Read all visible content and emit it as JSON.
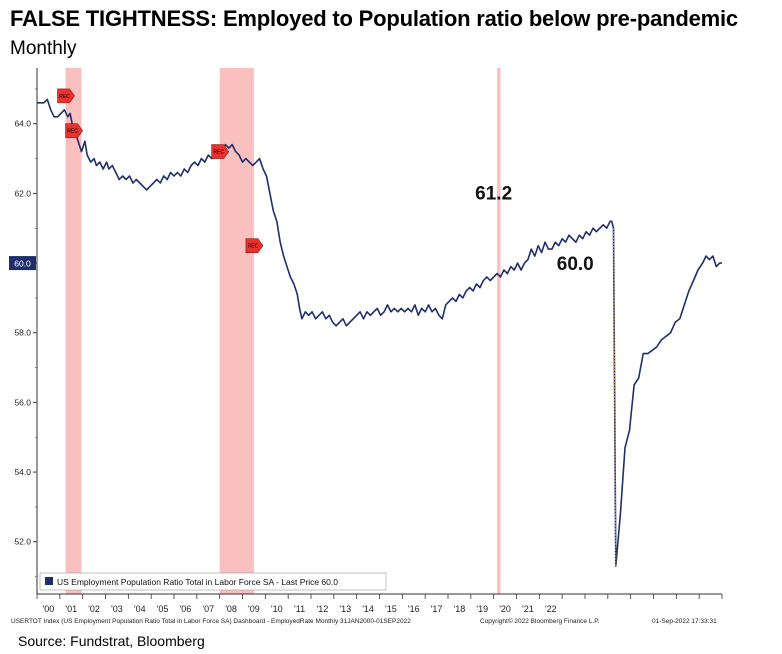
{
  "title": "FALSE TIGHTNESS: Employed to Population ratio below pre-pandemic",
  "subtitle": "Monthly",
  "source": "Source: Fundstrat, Bloomberg",
  "footer": {
    "left": "USERTOT Index (US Employment Population Ratio Total in Labor Force SA) Dashboard - EmployedRate  Monthly 31JAN2000-01SEP2022",
    "copyright": "Copyright© 2022 Bloomberg Finance L.P.",
    "timestamp": "01-Sep-2022 17:33:31"
  },
  "chart_data": {
    "type": "line",
    "series": [
      {
        "name": "US Employment Population Ratio Total in Labor Force SA",
        "color": "#1f2f6b",
        "points": [
          [
            2000.0,
            64.6
          ],
          [
            2000.3,
            64.6
          ],
          [
            2000.45,
            64.7
          ],
          [
            2000.6,
            64.4
          ],
          [
            2000.75,
            64.2
          ],
          [
            2000.9,
            64.2
          ],
          [
            2001.05,
            64.3
          ],
          [
            2001.2,
            64.4
          ],
          [
            2001.35,
            64.2
          ],
          [
            2001.45,
            64.3
          ],
          [
            2001.6,
            63.8
          ],
          [
            2001.75,
            63.6
          ],
          [
            2001.85,
            63.4
          ],
          [
            2001.95,
            63.2
          ],
          [
            2002.1,
            63.5
          ],
          [
            2002.2,
            63.1
          ],
          [
            2002.35,
            62.9
          ],
          [
            2002.5,
            63.0
          ],
          [
            2002.6,
            62.8
          ],
          [
            2002.75,
            62.9
          ],
          [
            2002.9,
            62.7
          ],
          [
            2003.05,
            62.9
          ],
          [
            2003.15,
            62.7
          ],
          [
            2003.3,
            62.8
          ],
          [
            2003.45,
            62.6
          ],
          [
            2003.6,
            62.4
          ],
          [
            2003.75,
            62.5
          ],
          [
            2003.9,
            62.4
          ],
          [
            2004.05,
            62.5
          ],
          [
            2004.2,
            62.3
          ],
          [
            2004.35,
            62.4
          ],
          [
            2004.5,
            62.3
          ],
          [
            2004.65,
            62.2
          ],
          [
            2004.8,
            62.1
          ],
          [
            2004.95,
            62.2
          ],
          [
            2005.1,
            62.3
          ],
          [
            2005.25,
            62.4
          ],
          [
            2005.4,
            62.3
          ],
          [
            2005.55,
            62.5
          ],
          [
            2005.7,
            62.4
          ],
          [
            2005.85,
            62.6
          ],
          [
            2006.0,
            62.5
          ],
          [
            2006.15,
            62.6
          ],
          [
            2006.3,
            62.5
          ],
          [
            2006.45,
            62.7
          ],
          [
            2006.6,
            62.6
          ],
          [
            2006.75,
            62.8
          ],
          [
            2006.9,
            62.9
          ],
          [
            2007.05,
            62.8
          ],
          [
            2007.2,
            63.0
          ],
          [
            2007.35,
            62.9
          ],
          [
            2007.5,
            63.1
          ],
          [
            2007.65,
            63.0
          ],
          [
            2007.8,
            63.2
          ],
          [
            2007.95,
            63.1
          ],
          [
            2008.1,
            63.2
          ],
          [
            2008.25,
            63.4
          ],
          [
            2008.4,
            63.3
          ],
          [
            2008.55,
            63.4
          ],
          [
            2008.7,
            63.2
          ],
          [
            2008.85,
            63.1
          ],
          [
            2009.0,
            62.9
          ],
          [
            2009.15,
            63.0
          ],
          [
            2009.3,
            62.9
          ],
          [
            2009.45,
            62.8
          ],
          [
            2009.6,
            62.9
          ],
          [
            2009.75,
            63.0
          ],
          [
            2009.9,
            62.7
          ],
          [
            2010.05,
            62.5
          ],
          [
            2010.2,
            62.0
          ],
          [
            2010.35,
            61.5
          ],
          [
            2010.5,
            61.2
          ],
          [
            2010.65,
            60.6
          ],
          [
            2010.8,
            60.2
          ],
          [
            2010.95,
            59.9
          ],
          [
            2011.1,
            59.6
          ],
          [
            2011.25,
            59.4
          ],
          [
            2011.4,
            59.1
          ],
          [
            2011.5,
            58.7
          ],
          [
            2011.6,
            58.4
          ],
          [
            2011.75,
            58.6
          ],
          [
            2011.9,
            58.5
          ],
          [
            2012.05,
            58.6
          ],
          [
            2012.2,
            58.4
          ],
          [
            2012.35,
            58.5
          ],
          [
            2012.5,
            58.6
          ],
          [
            2012.65,
            58.4
          ],
          [
            2012.8,
            58.5
          ],
          [
            2012.95,
            58.3
          ],
          [
            2013.1,
            58.2
          ],
          [
            2013.25,
            58.3
          ],
          [
            2013.4,
            58.4
          ],
          [
            2013.55,
            58.2
          ],
          [
            2013.7,
            58.3
          ],
          [
            2013.85,
            58.4
          ],
          [
            2014.0,
            58.5
          ],
          [
            2014.15,
            58.6
          ],
          [
            2014.3,
            58.4
          ],
          [
            2014.45,
            58.6
          ],
          [
            2014.6,
            58.5
          ],
          [
            2014.75,
            58.6
          ],
          [
            2014.9,
            58.7
          ],
          [
            2015.05,
            58.5
          ],
          [
            2015.2,
            58.6
          ],
          [
            2015.35,
            58.8
          ],
          [
            2015.5,
            58.6
          ],
          [
            2015.65,
            58.7
          ],
          [
            2015.8,
            58.6
          ],
          [
            2015.95,
            58.7
          ],
          [
            2016.1,
            58.6
          ],
          [
            2016.25,
            58.7
          ],
          [
            2016.4,
            58.6
          ],
          [
            2016.55,
            58.8
          ],
          [
            2016.7,
            58.5
          ],
          [
            2016.85,
            58.7
          ],
          [
            2017.0,
            58.6
          ],
          [
            2017.15,
            58.8
          ],
          [
            2017.3,
            58.6
          ],
          [
            2017.45,
            58.7
          ],
          [
            2017.6,
            58.5
          ],
          [
            2017.75,
            58.4
          ],
          [
            2017.9,
            58.8
          ],
          [
            2018.05,
            58.9
          ],
          [
            2018.2,
            59.0
          ],
          [
            2018.35,
            58.9
          ],
          [
            2018.5,
            59.1
          ],
          [
            2018.65,
            59.0
          ],
          [
            2018.8,
            59.2
          ],
          [
            2018.95,
            59.3
          ],
          [
            2019.1,
            59.2
          ],
          [
            2019.25,
            59.4
          ],
          [
            2019.4,
            59.3
          ],
          [
            2019.55,
            59.5
          ],
          [
            2019.7,
            59.6
          ],
          [
            2019.85,
            59.5
          ],
          [
            2020.0,
            59.6
          ],
          [
            2020.15,
            59.7
          ],
          [
            2020.3,
            59.6
          ],
          [
            2020.45,
            59.8
          ],
          [
            2020.6,
            59.7
          ],
          [
            2020.75,
            59.9
          ],
          [
            2020.9,
            59.8
          ],
          [
            2021.05,
            60.0
          ],
          [
            2021.2,
            59.8
          ],
          [
            2021.35,
            60.0
          ],
          [
            2021.5,
            60.1
          ],
          [
            2021.65,
            60.4
          ],
          [
            2021.8,
            60.2
          ],
          [
            2021.95,
            60.5
          ],
          [
            2022.1,
            60.3
          ],
          [
            2022.25,
            60.6
          ],
          [
            2022.4,
            60.4
          ],
          [
            2022.55,
            60.4
          ],
          [
            2022.7,
            60.6
          ],
          [
            2022.85,
            60.5
          ],
          [
            2023.0,
            60.7
          ],
          [
            2023.15,
            60.6
          ],
          [
            2023.3,
            60.8
          ],
          [
            2023.45,
            60.7
          ],
          [
            2023.6,
            60.6
          ],
          [
            2023.75,
            60.8
          ],
          [
            2023.9,
            60.7
          ],
          [
            2024.05,
            60.9
          ],
          [
            2024.2,
            60.8
          ],
          [
            2024.35,
            61.0
          ],
          [
            2024.5,
            60.9
          ],
          [
            2024.65,
            61.0
          ],
          [
            2024.8,
            61.1
          ],
          [
            2024.95,
            61.0
          ],
          [
            2025.1,
            61.2
          ],
          [
            2025.17,
            61.2
          ],
          [
            2025.25,
            61.0
          ],
          [
            2025.35,
            51.3
          ],
          [
            2025.55,
            52.8
          ],
          [
            2025.75,
            54.7
          ],
          [
            2025.95,
            55.2
          ],
          [
            2026.15,
            56.5
          ],
          [
            2026.35,
            56.7
          ],
          [
            2026.55,
            57.4
          ],
          [
            2026.75,
            57.4
          ],
          [
            2026.95,
            57.5
          ],
          [
            2027.15,
            57.6
          ],
          [
            2027.35,
            57.8
          ],
          [
            2027.55,
            57.9
          ],
          [
            2027.75,
            58.0
          ],
          [
            2027.95,
            58.3
          ],
          [
            2028.15,
            58.4
          ],
          [
            2028.35,
            58.8
          ],
          [
            2028.55,
            59.2
          ],
          [
            2028.75,
            59.5
          ],
          [
            2028.95,
            59.8
          ],
          [
            2029.15,
            60.0
          ],
          [
            2029.3,
            60.2
          ],
          [
            2029.45,
            60.1
          ],
          [
            2029.6,
            60.2
          ],
          [
            2029.75,
            59.9
          ],
          [
            2029.9,
            60.0
          ],
          [
            2030.0,
            60.0
          ]
        ]
      }
    ],
    "ylim": [
      50.5,
      65.6
    ],
    "yticks": [
      52.0,
      54.0,
      56.0,
      58.0,
      60.0,
      62.0,
      64.0
    ],
    "ytick_labels": [
      "52.0",
      "54.0",
      "56.0",
      "58.0",
      "60.0",
      "62.0",
      "64.0"
    ],
    "xticks": [
      2000.5,
      2001.5,
      2002.5,
      2003.5,
      2004.5,
      2005.5,
      2006.5,
      2007.5,
      2008.5,
      2009.5,
      2010.5,
      2011.5,
      2012.5,
      2013.5,
      2014.5,
      2015.5,
      2016.5,
      2017.5,
      2018.5,
      2019.5,
      2020.5,
      2021.5,
      2022.5
    ],
    "xtick_labels": [
      "'00",
      "'01",
      "'02",
      "'03",
      "'04",
      "'05",
      "'06",
      "'07",
      "'08",
      "'09",
      "'10",
      "'11",
      "'12",
      "'13",
      "'14",
      "'15",
      "'16",
      "'17",
      "'18",
      "'19",
      "'20",
      "'21",
      "'22"
    ],
    "recession_bands": [
      [
        2001.25,
        2001.95
      ],
      [
        2008.0,
        2009.5
      ],
      [
        2020.15,
        2020.3
      ]
    ],
    "recession_marker_label": "REC",
    "recession_markers": [
      [
        2001.25,
        64.8
      ],
      [
        2001.6,
        63.8
      ],
      [
        2008.0,
        63.2
      ],
      [
        2009.5,
        60.5
      ]
    ],
    "annotations": [
      {
        "text": "61.2",
        "x": 2020.0,
        "y": 61.2
      },
      {
        "text": "60.0",
        "x": 2022.5,
        "y": 60.0
      }
    ],
    "last_price_label": "60.0",
    "legend_text": "US Employment Population Ratio Total in Labor Force SA - Last Price 60.0",
    "legend_position": "bottom-left",
    "grid": false
  }
}
